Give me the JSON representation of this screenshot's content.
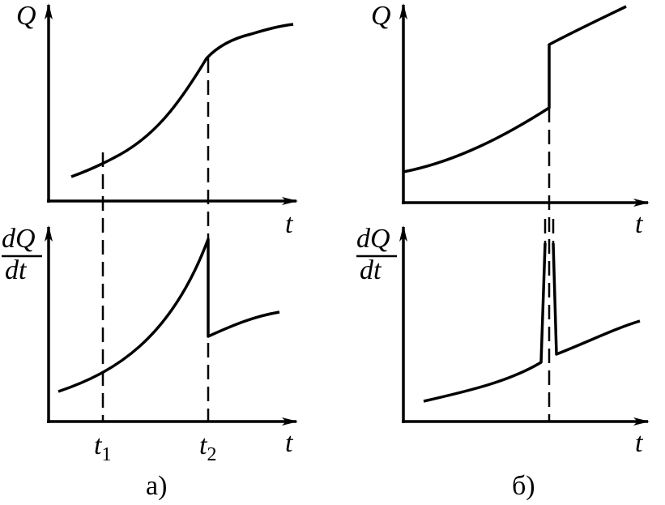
{
  "panel_a": {
    "top": {
      "y_label": "Q",
      "x_label": "t"
    },
    "bottom": {
      "y_label_num": "dQ",
      "y_label_den": "dt",
      "x_label": "t",
      "tick_1": {
        "main": "t",
        "sub": "1"
      },
      "tick_2": {
        "main": "t",
        "sub": "2"
      }
    },
    "caption": "а)"
  },
  "panel_b": {
    "top": {
      "y_label": "Q",
      "x_label": "t"
    },
    "bottom": {
      "y_label_num": "dQ",
      "y_label_den": "dt",
      "x_label": "t"
    },
    "caption": "б)"
  }
}
